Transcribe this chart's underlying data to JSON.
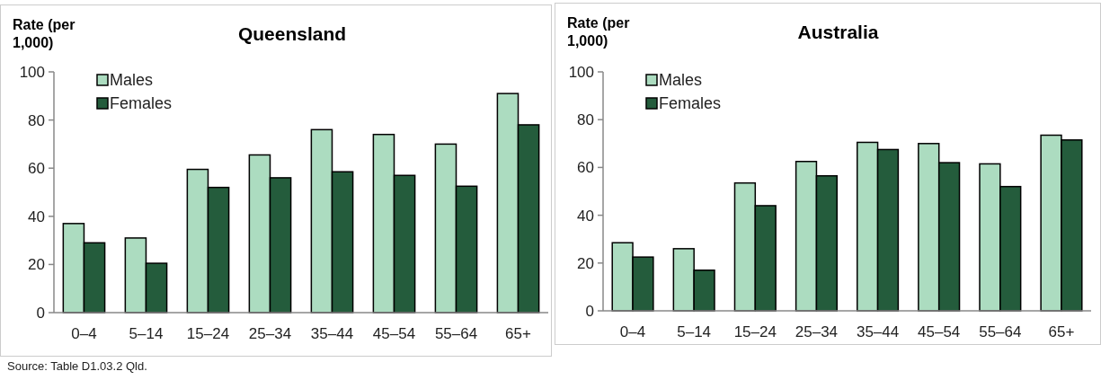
{
  "chart_data": [
    {
      "type": "bar",
      "title": "Queensland",
      "ylabel": "Rate (per 1,000)",
      "categories": [
        "0–4",
        "5–14",
        "15–24",
        "25–34",
        "35–44",
        "45–54",
        "55–64",
        "65+"
      ],
      "series": [
        {
          "name": "Males",
          "color": "#acdcc0",
          "values": [
            37,
            31,
            59.5,
            65.5,
            76,
            74,
            70,
            91
          ]
        },
        {
          "name": "Females",
          "color": "#245c3c",
          "values": [
            29,
            20.5,
            52,
            56,
            58.5,
            57,
            52.5,
            78
          ]
        }
      ],
      "ylim": [
        0,
        100
      ],
      "yticks": [
        0,
        20,
        40,
        60,
        80,
        100
      ],
      "grid": false,
      "legend": "top left",
      "annotations": [
        "Source: Table D1.03.2 Qld."
      ]
    },
    {
      "type": "bar",
      "title": "Australia",
      "ylabel": "Rate (per 1,000)",
      "categories": [
        "0–4",
        "5–14",
        "15–24",
        "25–34",
        "35–44",
        "45–54",
        "55–64",
        "65+"
      ],
      "series": [
        {
          "name": "Males",
          "color": "#acdcc0",
          "values": [
            28.5,
            26,
            53.5,
            62.5,
            70.5,
            70,
            61.5,
            73.5
          ]
        },
        {
          "name": "Females",
          "color": "#245c3c",
          "values": [
            22.5,
            17,
            44,
            56.5,
            67.5,
            62,
            52,
            71.5
          ]
        }
      ],
      "ylim": [
        0,
        100
      ],
      "yticks": [
        0,
        20,
        40,
        60,
        80,
        100
      ],
      "grid": false,
      "legend": "top left"
    }
  ]
}
